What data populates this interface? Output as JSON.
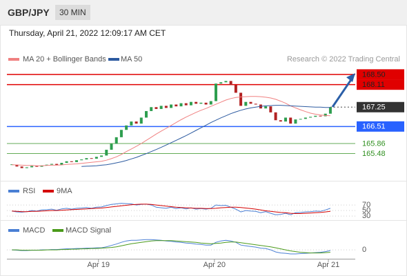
{
  "header": {
    "symbol": "GBP/JPY",
    "timeframe": "30 MIN",
    "datetime": "Thursday, April 21, 2022 12:09:17 AM CET"
  },
  "chart_data": [
    {
      "type": "candlestick",
      "source": "Research © 2022 Trading Central",
      "close": [
        165.05,
        164.98,
        164.92,
        164.95,
        165.0,
        164.97,
        165.02,
        165.05,
        165.08,
        165.04,
        165.12,
        165.18,
        165.15,
        165.22,
        165.25,
        165.3,
        165.28,
        165.35,
        165.4,
        165.62,
        165.85,
        166.1,
        166.38,
        166.55,
        166.7,
        166.62,
        166.85,
        167.1,
        167.25,
        167.18,
        167.3,
        167.22,
        167.35,
        167.28,
        167.4,
        167.32,
        167.45,
        167.38,
        167.42,
        167.35,
        167.48,
        168.15,
        168.2,
        168.25,
        168.1,
        167.8,
        167.3,
        167.45,
        167.38,
        167.35,
        167.2,
        167.28,
        167.05,
        166.75,
        166.7,
        166.85,
        166.62,
        166.78,
        166.8,
        166.85,
        166.88,
        166.92,
        166.9,
        167.0,
        167.25
      ],
      "up_color": "#2e9e4f",
      "down_color": "#b22222",
      "series": [
        {
          "name": "MA 20 + Bollinger Bands",
          "color": "#f08080",
          "values": [
            165.05,
            165.04,
            165.03,
            165.02,
            165.02,
            165.01,
            165.01,
            165.02,
            165.03,
            165.03,
            165.04,
            165.06,
            165.07,
            165.08,
            165.1,
            165.12,
            165.14,
            165.16,
            165.18,
            165.22,
            165.28,
            165.35,
            165.44,
            165.55,
            165.65,
            165.75,
            165.86,
            165.98,
            166.1,
            166.22,
            166.33,
            166.44,
            166.55,
            166.66,
            166.77,
            166.87,
            166.96,
            167.05,
            167.13,
            167.2,
            167.28,
            167.36,
            167.44,
            167.52,
            167.58,
            167.62,
            167.64,
            167.65,
            167.66,
            167.66,
            167.65,
            167.63,
            167.6,
            167.55,
            167.48,
            167.4,
            167.3,
            167.22,
            167.15,
            167.08,
            167.02,
            166.98,
            166.95,
            166.93,
            166.92
          ]
        },
        {
          "name": "MA 50",
          "color": "#2c5aa0",
          "values": [
            null,
            null,
            null,
            null,
            null,
            null,
            null,
            null,
            null,
            null,
            null,
            null,
            null,
            null,
            164.98,
            164.99,
            165.0,
            165.01,
            165.03,
            165.05,
            165.08,
            165.12,
            165.16,
            165.21,
            165.27,
            165.33,
            165.4,
            165.47,
            165.55,
            165.63,
            165.71,
            165.8,
            165.89,
            165.98,
            166.07,
            166.16,
            166.26,
            166.36,
            166.46,
            166.56,
            166.66,
            166.75,
            166.84,
            166.92,
            167.0,
            167.07,
            167.13,
            167.18,
            167.22,
            167.25,
            167.28,
            167.3,
            167.31,
            167.32,
            167.32,
            167.31,
            167.3,
            167.29,
            167.28,
            167.27,
            167.26,
            167.25,
            167.25,
            167.24,
            167.24
          ]
        }
      ],
      "levels": [
        {
          "value": 168.5,
          "label": "168.50",
          "color": "#e00000",
          "box": true,
          "line": "solid"
        },
        {
          "value": 168.11,
          "label": "168.11",
          "color": "#e00000",
          "box": true,
          "line": "solid"
        },
        {
          "value": 167.25,
          "label": "167.25",
          "color": "#333333",
          "box": true,
          "line": "dotted"
        },
        {
          "value": 166.51,
          "label": "166.51",
          "color": "#2962ff",
          "box": true,
          "line": "solid"
        },
        {
          "value": 165.86,
          "label": "165.86",
          "color": "#2f8f1f",
          "box": false,
          "line": "solid"
        },
        {
          "value": 165.48,
          "label": "165.48",
          "color": "#2f8f1f",
          "box": false,
          "line": "solid"
        }
      ],
      "xlim": [
        -1,
        69
      ],
      "ylim": [
        164.54,
        168.84
      ]
    },
    {
      "type": "line",
      "series": [
        {
          "name": "RSI",
          "color": "#4a7fd4",
          "values": [
            48,
            45,
            44,
            46,
            50,
            48,
            52,
            53,
            55,
            51,
            56,
            58,
            55,
            58,
            59,
            61,
            58,
            62,
            63,
            68,
            72,
            74,
            76,
            75,
            74,
            70,
            72,
            73,
            70,
            62,
            60,
            58,
            62,
            57,
            60,
            56,
            60,
            55,
            57,
            55,
            58,
            70,
            68,
            69,
            62,
            55,
            45,
            50,
            48,
            47,
            42,
            46,
            40,
            35,
            36,
            40,
            35,
            42,
            43,
            45,
            46,
            48,
            47,
            52,
            58
          ]
        },
        {
          "name": "9MA",
          "color": "#d40000",
          "values": [
            48,
            47,
            46,
            46,
            47,
            47,
            48,
            49,
            50,
            50,
            51,
            52,
            53,
            54,
            55,
            56,
            57,
            58,
            59,
            61,
            63,
            65,
            67,
            69,
            71,
            72,
            73,
            73,
            72,
            70,
            68,
            66,
            64,
            62,
            61,
            60,
            59,
            58,
            58,
            57,
            57,
            58,
            60,
            61,
            62,
            62,
            61,
            59,
            57,
            55,
            52,
            49,
            47,
            45,
            43,
            42,
            40,
            39,
            39,
            40,
            41,
            42,
            43,
            45,
            47
          ]
        }
      ],
      "xlim": [
        -1,
        69
      ],
      "ylim": [
        18,
        95
      ],
      "yticks": [
        70,
        50,
        30
      ]
    },
    {
      "type": "line",
      "series": [
        {
          "name": "MACD",
          "color": "#4a7fd4",
          "values": [
            0.0,
            -0.01,
            -0.02,
            -0.02,
            -0.01,
            -0.01,
            0.0,
            0.0,
            0.01,
            0.01,
            0.02,
            0.03,
            0.03,
            0.04,
            0.04,
            0.05,
            0.05,
            0.06,
            0.06,
            0.09,
            0.13,
            0.17,
            0.22,
            0.26,
            0.28,
            0.28,
            0.29,
            0.3,
            0.3,
            0.29,
            0.28,
            0.26,
            0.25,
            0.23,
            0.22,
            0.2,
            0.19,
            0.17,
            0.16,
            0.14,
            0.14,
            0.22,
            0.26,
            0.28,
            0.26,
            0.22,
            0.14,
            0.12,
            0.1,
            0.08,
            0.05,
            0.04,
            0.0,
            -0.06,
            -0.09,
            -0.1,
            -0.12,
            -0.12,
            -0.11,
            -0.1,
            -0.09,
            -0.08,
            -0.07,
            -0.05,
            -0.02
          ]
        },
        {
          "name": "MACD Signal",
          "color": "#4a9a1a",
          "values": [
            0.0,
            0.0,
            -0.01,
            -0.01,
            -0.01,
            -0.01,
            -0.01,
            0.0,
            0.0,
            0.0,
            0.01,
            0.01,
            0.02,
            0.02,
            0.03,
            0.03,
            0.04,
            0.04,
            0.05,
            0.06,
            0.07,
            0.09,
            0.12,
            0.15,
            0.18,
            0.2,
            0.22,
            0.24,
            0.26,
            0.27,
            0.27,
            0.27,
            0.27,
            0.26,
            0.25,
            0.24,
            0.23,
            0.22,
            0.2,
            0.19,
            0.18,
            0.19,
            0.2,
            0.22,
            0.23,
            0.23,
            0.21,
            0.19,
            0.17,
            0.15,
            0.13,
            0.11,
            0.09,
            0.06,
            0.03,
            0.0,
            -0.03,
            -0.05,
            -0.07,
            -0.08,
            -0.09,
            -0.09,
            -0.09,
            -0.08,
            -0.07
          ]
        }
      ],
      "xlim": [
        -1,
        69
      ],
      "ylim": [
        -0.2,
        0.75
      ],
      "yticks": [
        0
      ],
      "xticks": [
        {
          "value": 17.4,
          "label": "Apr 19"
        },
        {
          "value": 40.7,
          "label": "Apr 20"
        },
        {
          "value": 63.6,
          "label": "Apr 21"
        }
      ]
    }
  ]
}
